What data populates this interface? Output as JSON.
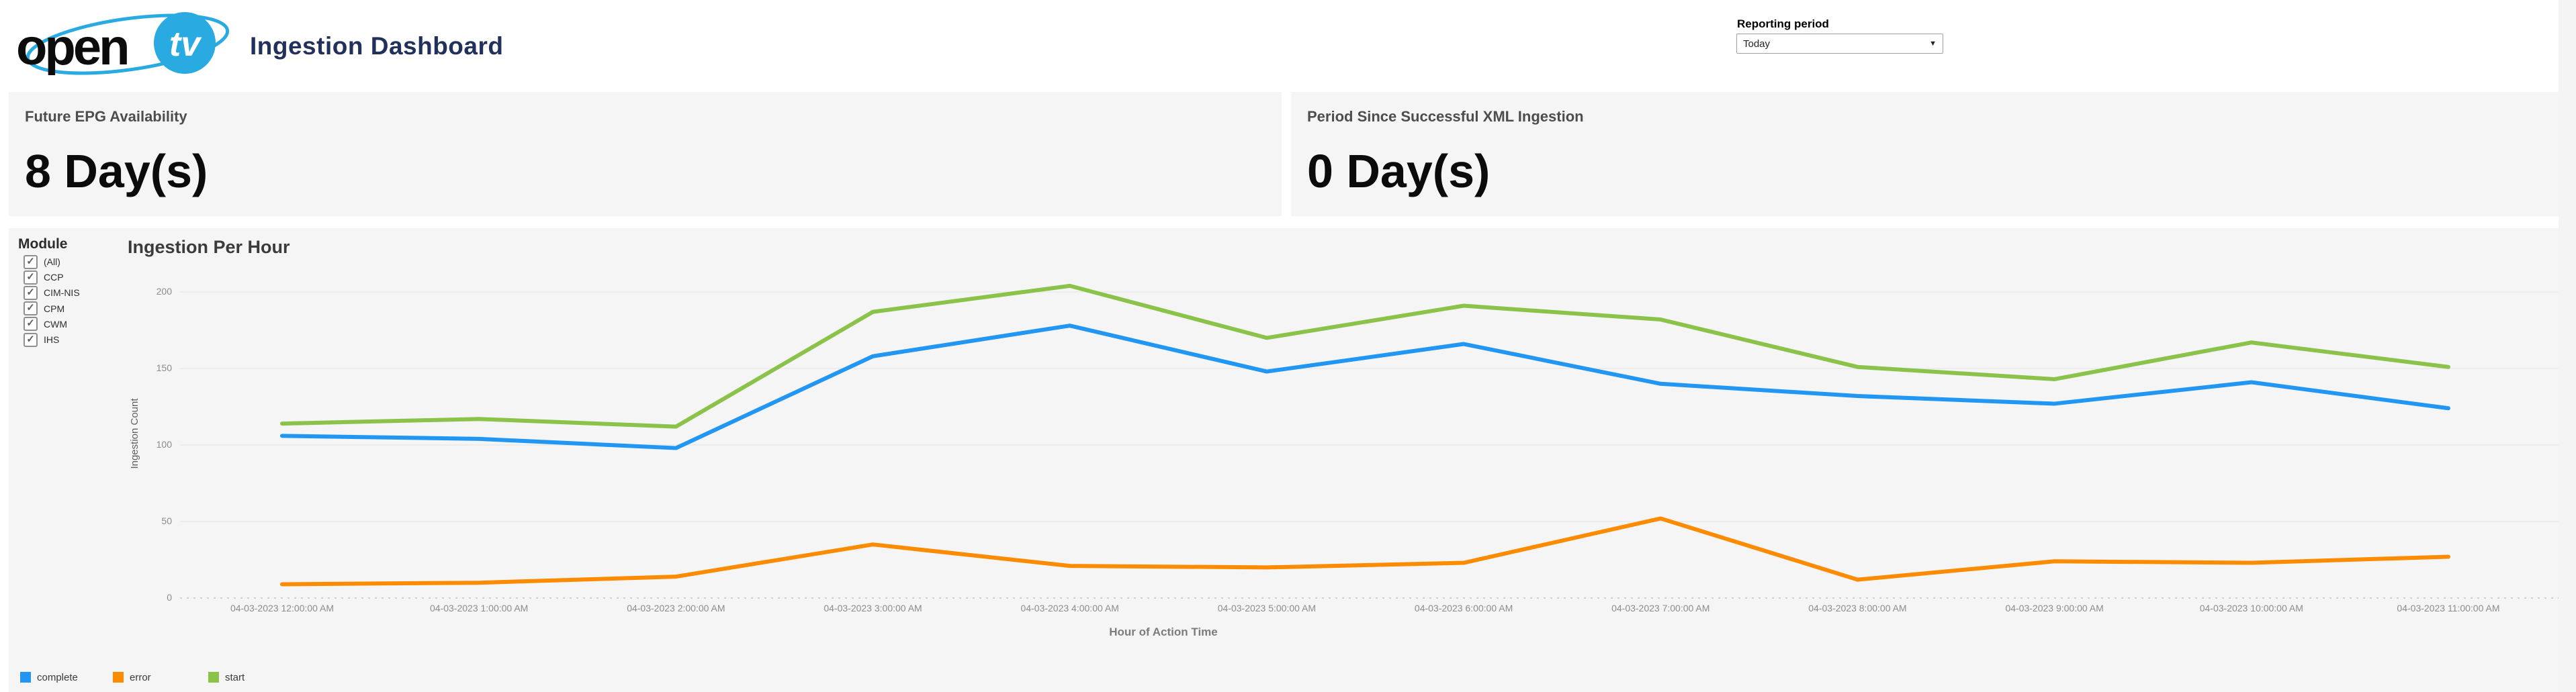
{
  "header": {
    "logo_word": "open",
    "logo_tv": "tv",
    "title": "Ingestion Dashboard",
    "reporting_period_label": "Reporting period",
    "reporting_period_value": "Today"
  },
  "kpis": [
    {
      "label": "Future EPG Availability",
      "value": "8 Day(s)"
    },
    {
      "label": "Period Since Successful XML Ingestion",
      "value": "0 Day(s)"
    }
  ],
  "module_filter": {
    "title": "Module",
    "items": [
      {
        "label": "(All)",
        "checked": true
      },
      {
        "label": "CCP",
        "checked": true
      },
      {
        "label": "CIM-NIS",
        "checked": true
      },
      {
        "label": "CPM",
        "checked": true
      },
      {
        "label": "CWM",
        "checked": true
      },
      {
        "label": "IHS",
        "checked": true
      }
    ]
  },
  "chart_data": {
    "type": "line",
    "title": "Ingestion Per Hour",
    "xlabel": "Hour of Action Time",
    "ylabel": "Ingestion Count",
    "ylim": [
      0,
      200
    ],
    "yticks": [
      0,
      50,
      100,
      150,
      200
    ],
    "grid": true,
    "legend_position": "bottom-left",
    "categories": [
      "04-03-2023 12:00:00 AM",
      "04-03-2023 1:00:00 AM",
      "04-03-2023 2:00:00 AM",
      "04-03-2023 3:00:00 AM",
      "04-03-2023 4:00:00 AM",
      "04-03-2023 5:00:00 AM",
      "04-03-2023 6:00:00 AM",
      "04-03-2023 7:00:00 AM",
      "04-03-2023 8:00:00 AM",
      "04-03-2023 9:00:00 AM",
      "04-03-2023 10:00:00 AM",
      "04-03-2023 11:00:00 AM"
    ],
    "series": [
      {
        "name": "complete",
        "color": "#2196f3",
        "values": [
          106,
          104,
          98,
          158,
          178,
          148,
          166,
          140,
          132,
          127,
          141,
          124
        ]
      },
      {
        "name": "error",
        "color": "#fc8b00",
        "values": [
          9,
          10,
          14,
          35,
          21,
          20,
          23,
          52,
          12,
          24,
          23,
          27
        ]
      },
      {
        "name": "start",
        "color": "#8bc34a",
        "values": [
          114,
          117,
          112,
          187,
          204,
          170,
          191,
          182,
          151,
          143,
          167,
          151
        ]
      }
    ]
  },
  "colors": {
    "logo_blue": "#29abe2",
    "title_navy": "#22305c",
    "panel_bg": "#f5f5f5",
    "grid_line": "#ececec",
    "zero_line": "#cfcfcf"
  }
}
